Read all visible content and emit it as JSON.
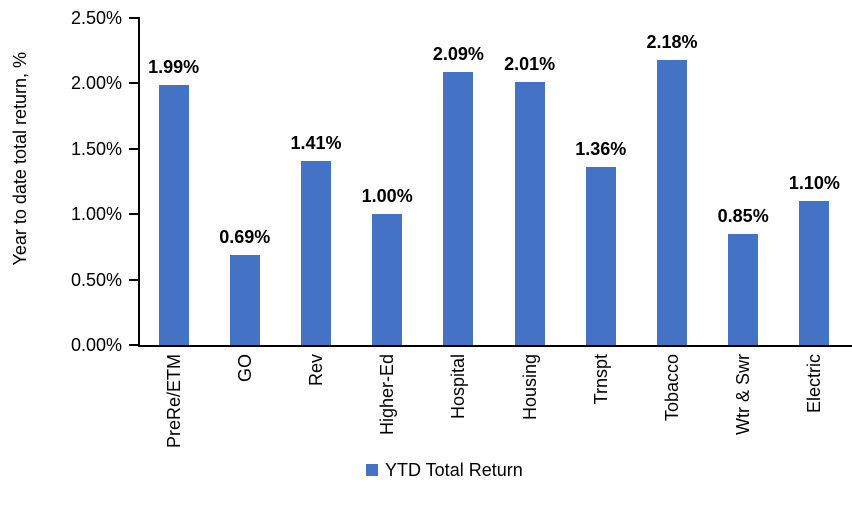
{
  "chart_data": {
    "type": "bar",
    "title": "",
    "xlabel": "",
    "ylabel": "Year to date total return, %",
    "categories": [
      "PreRe/ETM",
      "GO",
      "Rev",
      "Higher-Ed",
      "Hospital",
      "Housing",
      "Trnspt",
      "Tobacco",
      "Wtr & Swr",
      "Electric"
    ],
    "values": [
      1.99,
      0.69,
      1.41,
      1.0,
      2.09,
      2.01,
      1.36,
      2.18,
      0.85,
      1.1
    ],
    "data_labels": [
      "1.99%",
      "0.69%",
      "1.41%",
      "1.00%",
      "2.09%",
      "2.01%",
      "1.36%",
      "2.18%",
      "0.85%",
      "1.10%"
    ],
    "ylim": [
      0,
      2.5
    ],
    "ytick_step": 0.5,
    "ytick_labels": [
      "0.00%",
      "0.50%",
      "1.00%",
      "1.50%",
      "2.00%",
      "2.50%"
    ],
    "grid": false,
    "bar_color": "#4472C4",
    "axis_color": "#000000",
    "legend_position": "bottom",
    "legend": {
      "label": "YTD Total Return",
      "color": "#4472C4"
    }
  }
}
